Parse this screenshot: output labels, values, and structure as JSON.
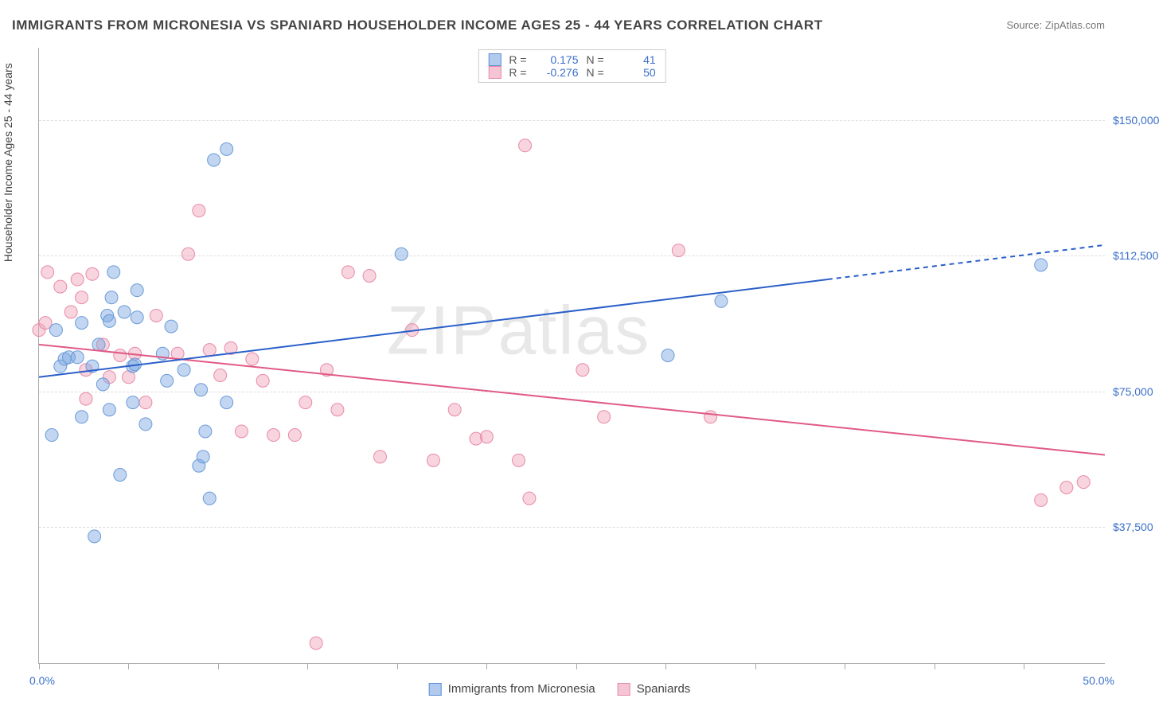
{
  "title": "IMMIGRANTS FROM MICRONESIA VS SPANIARD HOUSEHOLDER INCOME AGES 25 - 44 YEARS CORRELATION CHART",
  "source": "Source: ZipAtlas.com",
  "ylabel": "Householder Income Ages 25 - 44 years",
  "watermark": "ZIPatlas",
  "xlim": [
    0,
    50
  ],
  "ylim": [
    0,
    170000
  ],
  "xtick_positions": [
    0,
    4.2,
    8.4,
    12.6,
    16.8,
    21.0,
    25.2,
    29.4,
    33.6,
    37.8,
    42.0,
    46.2
  ],
  "xlabel_start": "0.0%",
  "xlabel_end": "50.0%",
  "ytick_values": [
    37500,
    75000,
    112500,
    150000
  ],
  "ytick_labels": [
    "$37,500",
    "$75,000",
    "$112,500",
    "$150,000"
  ],
  "grid_color": "#dddddd",
  "axis_color": "#aaaaaa",
  "label_color": "#3b6fc9",
  "series": {
    "blue": {
      "name": "Immigrants from Micronesia",
      "fill": "rgba(120,165,225,0.45)",
      "stroke": "#6a9bd8",
      "marker_radius": 8,
      "trend": {
        "x1": 0,
        "y1": 79000,
        "x2": 37,
        "y2": 106000,
        "dash_from_x": 37,
        "dash_to_x": 50,
        "dash_y2": 115500,
        "color": "#2a5fc9",
        "width": 2
      },
      "points": [
        [
          2.6,
          35000
        ],
        [
          3.8,
          52000
        ],
        [
          0.6,
          63000
        ],
        [
          2.0,
          68000
        ],
        [
          3.3,
          70000
        ],
        [
          5.0,
          66000
        ],
        [
          4.4,
          72000
        ],
        [
          7.5,
          54500
        ],
        [
          7.7,
          57000
        ],
        [
          7.8,
          64000
        ],
        [
          7.6,
          75500
        ],
        [
          8.0,
          45500
        ],
        [
          8.8,
          72000
        ],
        [
          1.0,
          82000
        ],
        [
          1.2,
          84000
        ],
        [
          0.8,
          92000
        ],
        [
          1.4,
          84500
        ],
        [
          1.8,
          84500
        ],
        [
          2.5,
          82000
        ],
        [
          2.8,
          88000
        ],
        [
          2.0,
          94000
        ],
        [
          3.2,
          96000
        ],
        [
          3.3,
          94500
        ],
        [
          3.4,
          101000
        ],
        [
          3.5,
          108000
        ],
        [
          4.0,
          97000
        ],
        [
          4.4,
          82000
        ],
        [
          4.5,
          82500
        ],
        [
          4.6,
          95500
        ],
        [
          4.6,
          103000
        ],
        [
          3.0,
          77000
        ],
        [
          6.0,
          78000
        ],
        [
          5.8,
          85500
        ],
        [
          6.8,
          81000
        ],
        [
          6.2,
          93000
        ],
        [
          8.2,
          139000
        ],
        [
          8.8,
          142000
        ],
        [
          17.0,
          113000
        ],
        [
          29.5,
          85000
        ],
        [
          32.0,
          100000
        ],
        [
          47.0,
          110000
        ]
      ],
      "r_value": "0.175",
      "n_value": "41"
    },
    "pink": {
      "name": "Spaniards",
      "fill": "rgba(240,160,185,0.45)",
      "stroke": "#e88aa8",
      "marker_radius": 8,
      "trend": {
        "x1": 0,
        "y1": 88000,
        "x2": 50,
        "y2": 57500,
        "color": "#e05a85",
        "width": 2
      },
      "points": [
        [
          0.0,
          92000
        ],
        [
          0.3,
          94000
        ],
        [
          0.4,
          108000
        ],
        [
          1.0,
          104000
        ],
        [
          1.5,
          97000
        ],
        [
          1.8,
          106000
        ],
        [
          2.0,
          101000
        ],
        [
          2.5,
          107500
        ],
        [
          2.2,
          81000
        ],
        [
          2.2,
          73000
        ],
        [
          3.0,
          88000
        ],
        [
          3.8,
          85000
        ],
        [
          3.3,
          79000
        ],
        [
          4.2,
          79000
        ],
        [
          4.5,
          85500
        ],
        [
          5.0,
          72000
        ],
        [
          5.5,
          96000
        ],
        [
          6.5,
          85500
        ],
        [
          7.0,
          113000
        ],
        [
          7.5,
          125000
        ],
        [
          8.0,
          86500
        ],
        [
          8.5,
          79500
        ],
        [
          9.0,
          87000
        ],
        [
          9.5,
          64000
        ],
        [
          10.0,
          84000
        ],
        [
          10.5,
          78000
        ],
        [
          11.0,
          63000
        ],
        [
          12.0,
          63000
        ],
        [
          12.5,
          72000
        ],
        [
          13.0,
          5500
        ],
        [
          13.5,
          81000
        ],
        [
          14.0,
          70000
        ],
        [
          14.5,
          108000
        ],
        [
          15.5,
          107000
        ],
        [
          16.0,
          57000
        ],
        [
          17.5,
          92000
        ],
        [
          18.5,
          56000
        ],
        [
          19.5,
          70000
        ],
        [
          20.5,
          62000
        ],
        [
          21.0,
          62500
        ],
        [
          22.5,
          56000
        ],
        [
          22.8,
          143000
        ],
        [
          23.0,
          45500
        ],
        [
          25.5,
          81000
        ],
        [
          26.5,
          68000
        ],
        [
          30.0,
          114000
        ],
        [
          31.5,
          68000
        ],
        [
          47.0,
          45000
        ],
        [
          48.2,
          48500
        ],
        [
          49.0,
          50000
        ]
      ],
      "r_value": "-0.276",
      "n_value": "50"
    }
  },
  "stats_labels": {
    "r": "R =",
    "n": "N ="
  }
}
